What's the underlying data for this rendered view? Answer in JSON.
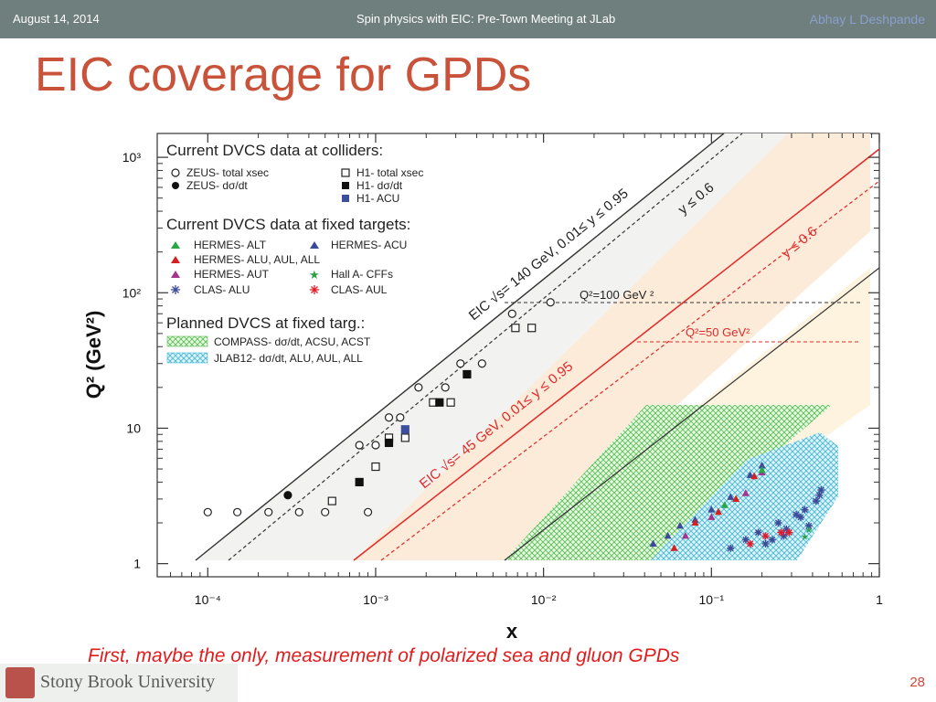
{
  "slide": {
    "date": "August 14, 2014",
    "talk": "Spin physics with EIC: Pre-Town Meeting at JLab",
    "author": "Abhay L Deshpande",
    "title": "EIC coverage for GPDs",
    "caption": "First, maybe the only, measurement of polarized sea and gluon GPDs",
    "university": "Stony Brook University",
    "page": "28"
  },
  "chart_data": {
    "type": "scatter",
    "xlabel": "x",
    "ylabel": "Q² (GeV²)",
    "xscale": "log",
    "yscale": "log",
    "xlim": [
      5e-05,
      1
    ],
    "ylim": [
      0.8,
      1500
    ],
    "x_ticks": [
      "10⁻⁴",
      "10⁻³",
      "10⁻²",
      "10⁻¹",
      "1"
    ],
    "y_ticks": [
      "1",
      "10",
      "10²",
      "10³"
    ],
    "legend": {
      "colliders_header": "Current DVCS data at colliders:",
      "fixed_header": "Current DVCS data at fixed targets:",
      "planned_header": "Planned DVCS at fixed targ.:",
      "zeus_total": "ZEUS- total xsec",
      "zeus_dsdt": "ZEUS- dσ/dt",
      "h1_total": "H1- total xsec",
      "h1_dsdt": "H1- dσ/dt",
      "h1_acu": "H1- ACU",
      "hermes_alt": "HERMES- ALT",
      "hermes_acu": "HERMES- ACU",
      "hermes_alu": "HERMES- ALU, AUL, ALL",
      "hermes_aut": "HERMES- AUT",
      "halla_cff": "Hall A- CFFs",
      "clas_alu": "CLAS- ALU",
      "clas_aul": "CLAS- AUL",
      "compass": "COMPASS- dσ/dt, ACSU, ACST",
      "jlab12": "JLAB12- dσ/dt, ALU, AUL, ALL"
    },
    "annotations": {
      "eic140": "EIC √s= 140 GeV, 0.01≤ y ≤ 0.95",
      "y06_black": "y ≤ 0.6",
      "y06_red": "y ≤ 0.6",
      "eic45": "EIC √s= 45 GeV, 0.01≤ y ≤ 0.95",
      "q2_100": "Q²=100 GeV ²",
      "q2_50": "Q²=50 GeV²"
    },
    "series": [
      {
        "key": "zeus_total",
        "shape": "circle",
        "fill": "none",
        "color": "#222222",
        "points": [
          [
            0.0001,
            2.4
          ],
          [
            0.00015,
            2.4
          ],
          [
            0.00023,
            2.4
          ],
          [
            0.00035,
            2.4
          ],
          [
            0.0005,
            2.4
          ],
          [
            0.0009,
            2.4
          ],
          [
            0.0008,
            7.5
          ],
          [
            0.001,
            7.5
          ],
          [
            0.0012,
            12
          ],
          [
            0.0014,
            12
          ],
          [
            0.0018,
            20
          ],
          [
            0.0026,
            20
          ],
          [
            0.0032,
            30
          ],
          [
            0.0043,
            30
          ],
          [
            0.0065,
            70
          ],
          [
            0.011,
            85
          ]
        ]
      },
      {
        "key": "zeus_dsdt",
        "shape": "circle",
        "fill": "solid",
        "color": "#111111",
        "points": [
          [
            0.0003,
            3.2
          ]
        ]
      },
      {
        "key": "h1_total",
        "shape": "square",
        "fill": "none",
        "color": "#222222",
        "points": [
          [
            0.00055,
            2.9
          ],
          [
            0.001,
            5.2
          ],
          [
            0.0012,
            8.5
          ],
          [
            0.0015,
            8.5
          ],
          [
            0.0022,
            15.5
          ],
          [
            0.0028,
            15.5
          ],
          [
            0.0068,
            55
          ],
          [
            0.0085,
            55
          ]
        ]
      },
      {
        "key": "h1_dsdt",
        "shape": "square",
        "fill": "solid",
        "color": "#111111",
        "points": [
          [
            0.0008,
            4
          ],
          [
            0.0012,
            7.8
          ],
          [
            0.0024,
            15.5
          ],
          [
            0.0035,
            25
          ]
        ]
      },
      {
        "key": "h1_acu",
        "shape": "square",
        "fill": "solid",
        "color": "#3d4f9c",
        "points": [
          [
            0.0015,
            9.8
          ]
        ]
      },
      {
        "key": "hermes_acu",
        "shape": "triangle",
        "fill": "solid",
        "color": "#3d4a9a",
        "points": [
          [
            0.045,
            1.4
          ],
          [
            0.055,
            1.6
          ],
          [
            0.065,
            1.9
          ],
          [
            0.08,
            2.1
          ],
          [
            0.1,
            2.5
          ],
          [
            0.13,
            3.1
          ],
          [
            0.17,
            4.5
          ],
          [
            0.2,
            5.3
          ]
        ]
      },
      {
        "key": "hermes_alu",
        "shape": "triangle",
        "fill": "solid",
        "color": "#d62020",
        "points": [
          [
            0.06,
            1.3
          ],
          [
            0.08,
            2.0
          ],
          [
            0.11,
            2.4
          ],
          [
            0.14,
            3.0
          ],
          [
            0.18,
            4.4
          ]
        ]
      },
      {
        "key": "hermes_aut",
        "shape": "triangle",
        "fill": "solid",
        "color": "#a4358f",
        "points": [
          [
            0.07,
            1.6
          ],
          [
            0.1,
            2.2
          ],
          [
            0.16,
            3.3
          ],
          [
            0.2,
            4.7
          ]
        ]
      },
      {
        "key": "hermes_alt",
        "shape": "triangle",
        "fill": "solid",
        "color": "#28a745",
        "points": [
          [
            0.2,
            4.9
          ],
          [
            0.12,
            2.7
          ]
        ]
      },
      {
        "key": "clas_alu",
        "shape": "asterisk",
        "fill": "solid",
        "color": "#3d4a9a",
        "points": [
          [
            0.13,
            1.3
          ],
          [
            0.16,
            1.5
          ],
          [
            0.19,
            1.7
          ],
          [
            0.21,
            1.4
          ],
          [
            0.25,
            2.0
          ],
          [
            0.28,
            1.8
          ],
          [
            0.32,
            2.3
          ],
          [
            0.36,
            2.5
          ],
          [
            0.42,
            2.9
          ],
          [
            0.45,
            3.5
          ],
          [
            0.38,
            1.9
          ],
          [
            0.27,
            1.6
          ],
          [
            0.23,
            1.5
          ],
          [
            0.34,
            2.2
          ],
          [
            0.44,
            3.2
          ]
        ]
      },
      {
        "key": "clas_aul",
        "shape": "asterisk",
        "fill": "solid",
        "color": "#e11b2b",
        "points": [
          [
            0.17,
            1.4
          ],
          [
            0.21,
            1.6
          ],
          [
            0.26,
            1.7
          ],
          [
            0.29,
            1.7
          ]
        ]
      },
      {
        "key": "halla_cff",
        "shape": "star",
        "fill": "solid",
        "color": "#2aa14a",
        "points": [
          [
            0.36,
            1.6
          ],
          [
            0.38,
            1.8
          ]
        ]
      }
    ]
  }
}
